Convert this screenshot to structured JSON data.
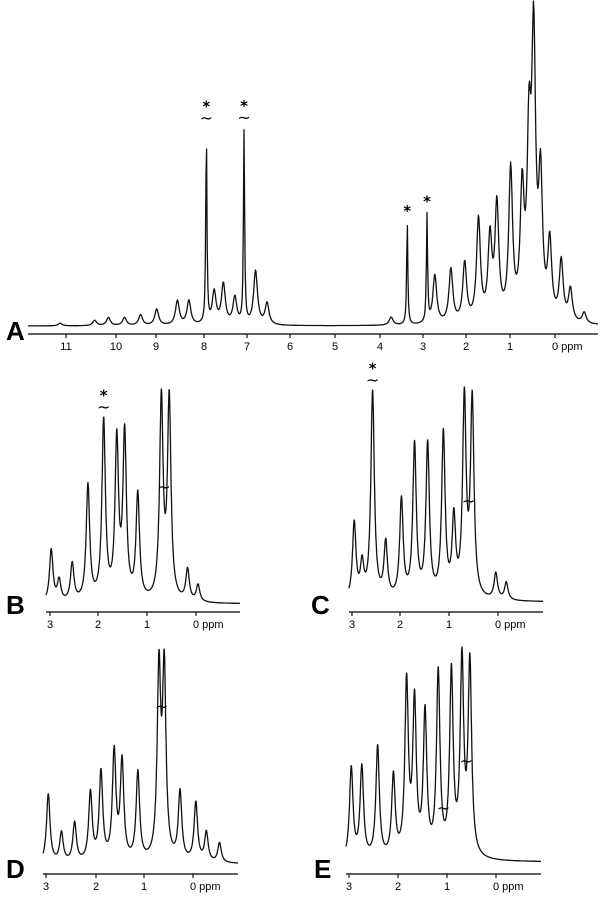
{
  "chart_data": [
    {
      "type": "line",
      "panel": "A",
      "x_unit": "ppm",
      "xlim": [
        11.8,
        -0.6
      ],
      "x_ticks": [
        "11",
        "10",
        "9",
        "8",
        "7",
        "6",
        "5",
        "4",
        "3",
        "2",
        "1",
        "0 ppm"
      ],
      "peaks": [
        {
          "ppm": 11.1,
          "h": 0.01
        },
        {
          "ppm": 10.35,
          "h": 0.02
        },
        {
          "ppm": 10.05,
          "h": 0.03
        },
        {
          "ppm": 9.7,
          "h": 0.03
        },
        {
          "ppm": 9.35,
          "h": 0.04
        },
        {
          "ppm": 9.0,
          "h": 0.06
        },
        {
          "ppm": 8.55,
          "h": 0.09
        },
        {
          "ppm": 8.3,
          "h": 0.09
        },
        {
          "ppm": 7.92,
          "h": 0.72,
          "w": 0.015
        },
        {
          "ppm": 7.75,
          "h": 0.12
        },
        {
          "ppm": 7.55,
          "h": 0.15
        },
        {
          "ppm": 7.3,
          "h": 0.1
        },
        {
          "ppm": 7.1,
          "h": 0.72,
          "w": 0.015
        },
        {
          "ppm": 6.85,
          "h": 0.2
        },
        {
          "ppm": 6.6,
          "h": 0.08
        },
        {
          "ppm": 3.9,
          "h": 0.03
        },
        {
          "ppm": 3.55,
          "h": 0.38,
          "w": 0.015
        },
        {
          "ppm": 3.12,
          "h": 0.4,
          "w": 0.015
        },
        {
          "ppm": 2.95,
          "h": 0.18
        },
        {
          "ppm": 2.6,
          "h": 0.2
        },
        {
          "ppm": 2.3,
          "h": 0.22
        },
        {
          "ppm": 2.0,
          "h": 0.38
        },
        {
          "ppm": 1.75,
          "h": 0.3
        },
        {
          "ppm": 1.6,
          "h": 0.42
        },
        {
          "ppm": 1.3,
          "h": 0.55
        },
        {
          "ppm": 1.05,
          "h": 0.45
        },
        {
          "ppm": 0.9,
          "h": 0.62
        },
        {
          "ppm": 0.8,
          "h": 1.0
        },
        {
          "ppm": 0.65,
          "h": 0.5
        },
        {
          "ppm": 0.45,
          "h": 0.28
        },
        {
          "ppm": 0.2,
          "h": 0.22
        },
        {
          "ppm": 0.0,
          "h": 0.12
        },
        {
          "ppm": -0.3,
          "h": 0.04
        }
      ],
      "markers": [
        {
          "ppm": 7.92,
          "label": "*",
          "symbol": "~"
        },
        {
          "ppm": 7.1,
          "label": "*",
          "symbol": "~"
        },
        {
          "ppm": 3.55,
          "label": "*"
        },
        {
          "ppm": 3.12,
          "label": "*"
        }
      ]
    },
    {
      "type": "line",
      "panel": "B",
      "x_unit": "ppm",
      "xlim": [
        3.1,
        -0.6
      ],
      "x_ticks": [
        "3",
        "2",
        "1",
        "0 ppm"
      ],
      "peaks": [
        {
          "ppm": 3.0,
          "h": 0.25
        },
        {
          "ppm": 2.85,
          "h": 0.1
        },
        {
          "ppm": 2.6,
          "h": 0.18
        },
        {
          "ppm": 2.3,
          "h": 0.55
        },
        {
          "ppm": 2.0,
          "h": 0.85
        },
        {
          "ppm": 1.75,
          "h": 0.75
        },
        {
          "ppm": 1.6,
          "h": 0.78
        },
        {
          "ppm": 1.35,
          "h": 0.5
        },
        {
          "ppm": 0.9,
          "h": 0.95
        },
        {
          "ppm": 0.75,
          "h": 0.95
        },
        {
          "ppm": 0.4,
          "h": 0.15
        },
        {
          "ppm": 0.2,
          "h": 0.08
        }
      ],
      "markers": [
        {
          "ppm": 2.0,
          "label": "*",
          "symbol": "~"
        },
        {
          "ppm": 0.85,
          "symbol": "~"
        }
      ]
    },
    {
      "type": "line",
      "panel": "C",
      "x_unit": "ppm",
      "xlim": [
        3.1,
        -0.6
      ],
      "x_ticks": [
        "3",
        "2",
        "1",
        "0 ppm"
      ],
      "peaks": [
        {
          "ppm": 3.0,
          "h": 0.35
        },
        {
          "ppm": 2.85,
          "h": 0.15
        },
        {
          "ppm": 2.65,
          "h": 0.95
        },
        {
          "ppm": 2.4,
          "h": 0.25
        },
        {
          "ppm": 2.1,
          "h": 0.45
        },
        {
          "ppm": 1.85,
          "h": 0.7
        },
        {
          "ppm": 1.6,
          "h": 0.7
        },
        {
          "ppm": 1.3,
          "h": 0.75
        },
        {
          "ppm": 1.1,
          "h": 0.35
        },
        {
          "ppm": 0.9,
          "h": 0.9
        },
        {
          "ppm": 0.75,
          "h": 0.9
        },
        {
          "ppm": 0.3,
          "h": 0.12
        },
        {
          "ppm": 0.1,
          "h": 0.08
        }
      ],
      "markers": [
        {
          "ppm": 2.65,
          "label": "*",
          "symbol": "~"
        },
        {
          "ppm": 0.82,
          "symbol": "~"
        }
      ]
    },
    {
      "type": "line",
      "panel": "D",
      "x_unit": "ppm",
      "xlim": [
        3.1,
        -0.6
      ],
      "x_ticks": [
        "3",
        "2",
        "1",
        "0 ppm"
      ],
      "peaks": [
        {
          "ppm": 3.0,
          "h": 0.35
        },
        {
          "ppm": 2.75,
          "h": 0.15
        },
        {
          "ppm": 2.5,
          "h": 0.2
        },
        {
          "ppm": 2.2,
          "h": 0.35
        },
        {
          "ppm": 2.0,
          "h": 0.45
        },
        {
          "ppm": 1.75,
          "h": 0.55
        },
        {
          "ppm": 1.6,
          "h": 0.5
        },
        {
          "ppm": 1.3,
          "h": 0.45
        },
        {
          "ppm": 0.9,
          "h": 0.95
        },
        {
          "ppm": 0.8,
          "h": 0.95
        },
        {
          "ppm": 0.5,
          "h": 0.35
        },
        {
          "ppm": 0.2,
          "h": 0.3
        },
        {
          "ppm": 0.0,
          "h": 0.15
        },
        {
          "ppm": -0.25,
          "h": 0.1
        }
      ],
      "markers": [
        {
          "ppm": 0.85,
          "symbol": "~"
        }
      ]
    },
    {
      "type": "line",
      "panel": "E",
      "x_unit": "ppm",
      "xlim": [
        3.1,
        -0.6
      ],
      "x_ticks": [
        "3",
        "2",
        "1",
        "0 ppm"
      ],
      "peaks": [
        {
          "ppm": 3.0,
          "h": 0.45
        },
        {
          "ppm": 2.8,
          "h": 0.45
        },
        {
          "ppm": 2.5,
          "h": 0.55
        },
        {
          "ppm": 2.2,
          "h": 0.4
        },
        {
          "ppm": 1.95,
          "h": 0.85
        },
        {
          "ppm": 1.8,
          "h": 0.75
        },
        {
          "ppm": 1.6,
          "h": 0.7
        },
        {
          "ppm": 1.35,
          "h": 0.9
        },
        {
          "ppm": 1.1,
          "h": 0.9
        },
        {
          "ppm": 0.9,
          "h": 0.95
        },
        {
          "ppm": 0.75,
          "h": 0.95
        }
      ],
      "markers": [
        {
          "ppm": 1.25,
          "symbol": "~"
        },
        {
          "ppm": 0.82,
          "symbol": "~"
        }
      ]
    }
  ],
  "panel_labels": [
    "A",
    "B",
    "C",
    "D",
    "E"
  ]
}
